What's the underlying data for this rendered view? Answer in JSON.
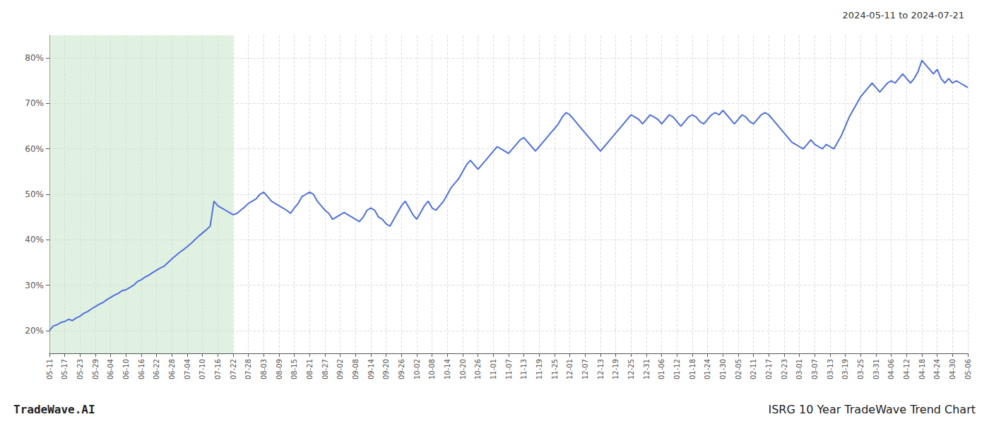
{
  "chart_data": {
    "type": "line",
    "title": "ISRG 10 Year TradeWave Trend Chart",
    "subtitle": "2024-05-11 to 2024-07-21",
    "annotations": [
      "TradeWave.AI"
    ],
    "categories": [
      "05-11",
      null,
      null,
      null,
      "05-17",
      null,
      null,
      null,
      "05-23",
      null,
      null,
      null,
      "05-29",
      null,
      null,
      null,
      "06-04",
      null,
      null,
      null,
      "06-10",
      null,
      null,
      null,
      "06-16",
      null,
      null,
      null,
      "06-22",
      null,
      null,
      null,
      "06-28",
      null,
      null,
      null,
      "07-04",
      null,
      null,
      null,
      "07-10",
      null,
      null,
      null,
      "07-16",
      null,
      null,
      null,
      "07-22",
      null,
      null,
      null,
      "07-28",
      null,
      null,
      null,
      "08-03",
      null,
      null,
      null,
      "08-09",
      null,
      null,
      null,
      "08-15",
      null,
      null,
      null,
      "08-21",
      null,
      null,
      null,
      "08-27",
      null,
      null,
      null,
      "09-02",
      null,
      null,
      null,
      "09-08",
      null,
      null,
      null,
      "09-14",
      null,
      null,
      null,
      "09-20",
      null,
      null,
      null,
      "09-26",
      null,
      null,
      null,
      "10-02",
      null,
      null,
      null,
      "10-08",
      null,
      null,
      null,
      "10-14",
      null,
      null,
      null,
      "10-20",
      null,
      null,
      null,
      "10-26",
      null,
      null,
      null,
      "11-01",
      null,
      null,
      null,
      "11-07",
      null,
      null,
      null,
      "11-13",
      null,
      null,
      null,
      "11-19",
      null,
      null,
      null,
      "11-25",
      null,
      null,
      null,
      "12-01",
      null,
      null,
      null,
      "12-07",
      null,
      null,
      null,
      "12-13",
      null,
      null,
      null,
      "12-19",
      null,
      null,
      null,
      "12-25",
      null,
      null,
      null,
      "12-31",
      null,
      null,
      null,
      "01-06",
      null,
      null,
      null,
      "01-12",
      null,
      null,
      null,
      "01-18",
      null,
      null,
      null,
      "01-24",
      null,
      null,
      null,
      "01-30",
      null,
      null,
      null,
      "02-05",
      null,
      null,
      null,
      "02-11",
      null,
      null,
      null,
      "02-17",
      null,
      null,
      null,
      "02-23",
      null,
      null,
      null,
      "03-01",
      null,
      null,
      null,
      "03-07",
      null,
      null,
      null,
      "03-13",
      null,
      null,
      null,
      "03-19",
      null,
      null,
      null,
      "03-25",
      null,
      null,
      null,
      "03-31",
      null,
      null,
      null,
      "04-06",
      null,
      null,
      null,
      "04-12",
      null,
      null,
      null,
      "04-18",
      null,
      null,
      null,
      "04-24",
      null,
      null,
      null,
      "04-30",
      null,
      null,
      null,
      "05-06"
    ],
    "values": [
      20.0,
      21.0,
      21.3,
      21.8,
      22.0,
      22.5,
      22.2,
      22.8,
      23.2,
      23.8,
      24.2,
      24.8,
      25.3,
      25.8,
      26.2,
      26.8,
      27.3,
      27.8,
      28.2,
      28.8,
      29.0,
      29.5,
      30.0,
      30.8,
      31.2,
      31.8,
      32.2,
      32.8,
      33.3,
      33.8,
      34.2,
      35.0,
      35.8,
      36.5,
      37.2,
      37.8,
      38.5,
      39.2,
      40.0,
      40.8,
      41.5,
      42.2,
      43.0,
      48.5,
      47.5,
      47.0,
      46.5,
      46.0,
      45.5,
      45.8,
      46.5,
      47.2,
      48.0,
      48.5,
      49.0,
      50.0,
      50.5,
      49.5,
      48.5,
      48.0,
      47.5,
      47.0,
      46.5,
      45.8,
      47.0,
      48.0,
      49.5,
      50.0,
      50.5,
      50.0,
      48.5,
      47.5,
      46.5,
      45.8,
      44.5,
      45.0,
      45.5,
      46.0,
      45.5,
      45.0,
      44.5,
      44.0,
      45.0,
      46.5,
      47.0,
      46.5,
      45.0,
      44.5,
      43.5,
      43.0,
      44.5,
      46.0,
      47.5,
      48.5,
      47.0,
      45.5,
      44.5,
      46.0,
      47.5,
      48.5,
      47.0,
      46.5,
      47.5,
      48.5,
      50.0,
      51.5,
      52.5,
      53.5,
      55.0,
      56.5,
      57.5,
      56.5,
      55.5,
      56.5,
      57.5,
      58.5,
      59.5,
      60.5,
      60.0,
      59.5,
      59.0,
      60.0,
      61.0,
      62.0,
      62.5,
      61.5,
      60.5,
      59.5,
      60.5,
      61.5,
      62.5,
      63.5,
      64.5,
      65.5,
      67.0,
      68.0,
      67.5,
      66.5,
      65.5,
      64.5,
      63.5,
      62.5,
      61.5,
      60.5,
      59.5,
      60.5,
      61.5,
      62.5,
      63.5,
      64.5,
      65.5,
      66.5,
      67.5,
      67.0,
      66.5,
      65.5,
      66.5,
      67.5,
      67.0,
      66.5,
      65.5,
      66.5,
      67.5,
      67.0,
      66.0,
      65.0,
      66.0,
      67.0,
      67.5,
      67.0,
      66.0,
      65.5,
      66.5,
      67.5,
      68.0,
      67.5,
      68.5,
      67.5,
      66.5,
      65.5,
      66.5,
      67.5,
      67.0,
      66.0,
      65.5,
      66.5,
      67.5,
      68.0,
      67.5,
      66.5,
      65.5,
      64.5,
      63.5,
      62.5,
      61.5,
      61.0,
      60.5,
      60.0,
      61.0,
      62.0,
      61.0,
      60.5,
      60.0,
      61.0,
      60.5,
      60.0,
      61.5,
      63.0,
      65.0,
      67.0,
      68.5,
      70.0,
      71.5,
      72.5,
      73.5,
      74.5,
      73.5,
      72.5,
      73.5,
      74.5,
      75.0,
      74.5,
      75.5,
      76.5,
      75.5,
      74.5,
      75.5,
      77.0,
      79.5,
      78.5,
      77.5,
      76.5,
      77.5,
      75.5,
      74.5,
      75.5,
      74.5,
      75.0,
      74.5,
      74.0,
      73.5
    ],
    "shade": {
      "start": "05-11",
      "end": "07-22",
      "color": "#c8e6c9"
    },
    "ylim": [
      15,
      85
    ],
    "yticks": [
      {
        "value": 20,
        "label": "20%"
      },
      {
        "value": 30,
        "label": "30%"
      },
      {
        "value": 40,
        "label": "40%"
      },
      {
        "value": 50,
        "label": "50%"
      },
      {
        "value": 60,
        "label": "60%"
      },
      {
        "value": 70,
        "label": "70%"
      },
      {
        "value": 80,
        "label": "80%"
      }
    ],
    "grid": true
  }
}
